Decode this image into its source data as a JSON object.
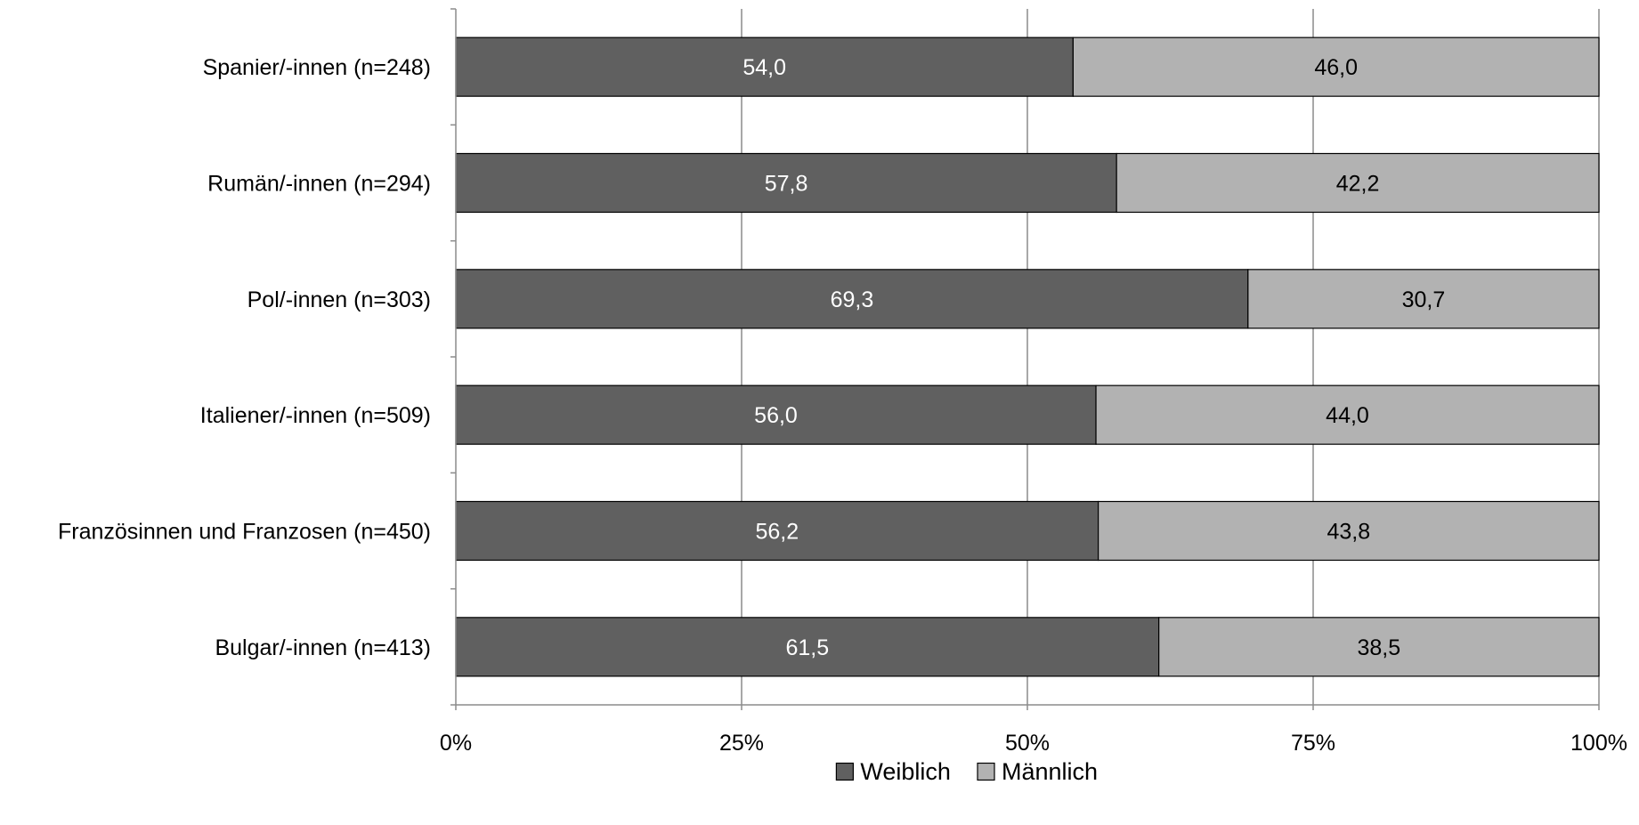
{
  "chart_data": {
    "type": "bar",
    "orientation": "horizontal",
    "stacked": true,
    "categories": [
      "Spanier/-innen (n=248)",
      "Rumän/-innen (n=294)",
      "Pol/-innen (n=303)",
      "Italiener/-innen (n=509)",
      "Französinnen und Franzosen (n=450)",
      "Bulgar/-innen (n=413)"
    ],
    "series": [
      {
        "name": "Weiblich",
        "color": "#606060",
        "values": [
          54.0,
          57.8,
          69.3,
          56.0,
          56.2,
          61.5
        ],
        "value_labels": [
          "54,0",
          "57,8",
          "69,3",
          "56,0",
          "56,2",
          "61,5"
        ]
      },
      {
        "name": "Männlich",
        "color": "#b2b2b2",
        "values": [
          46.0,
          42.2,
          30.7,
          44.0,
          43.8,
          38.5
        ],
        "value_labels": [
          "46,0",
          "42,2",
          "30,7",
          "44,0",
          "43,8",
          "38,5"
        ]
      }
    ],
    "x_ticks": [
      0,
      25,
      50,
      75,
      100
    ],
    "x_tick_labels": [
      "0%",
      "25%",
      "50%",
      "75%",
      "100%"
    ],
    "xlim": [
      0,
      100
    ],
    "title": "",
    "xlabel": "",
    "ylabel": "",
    "grid": "vertical",
    "legend_position": "bottom"
  }
}
